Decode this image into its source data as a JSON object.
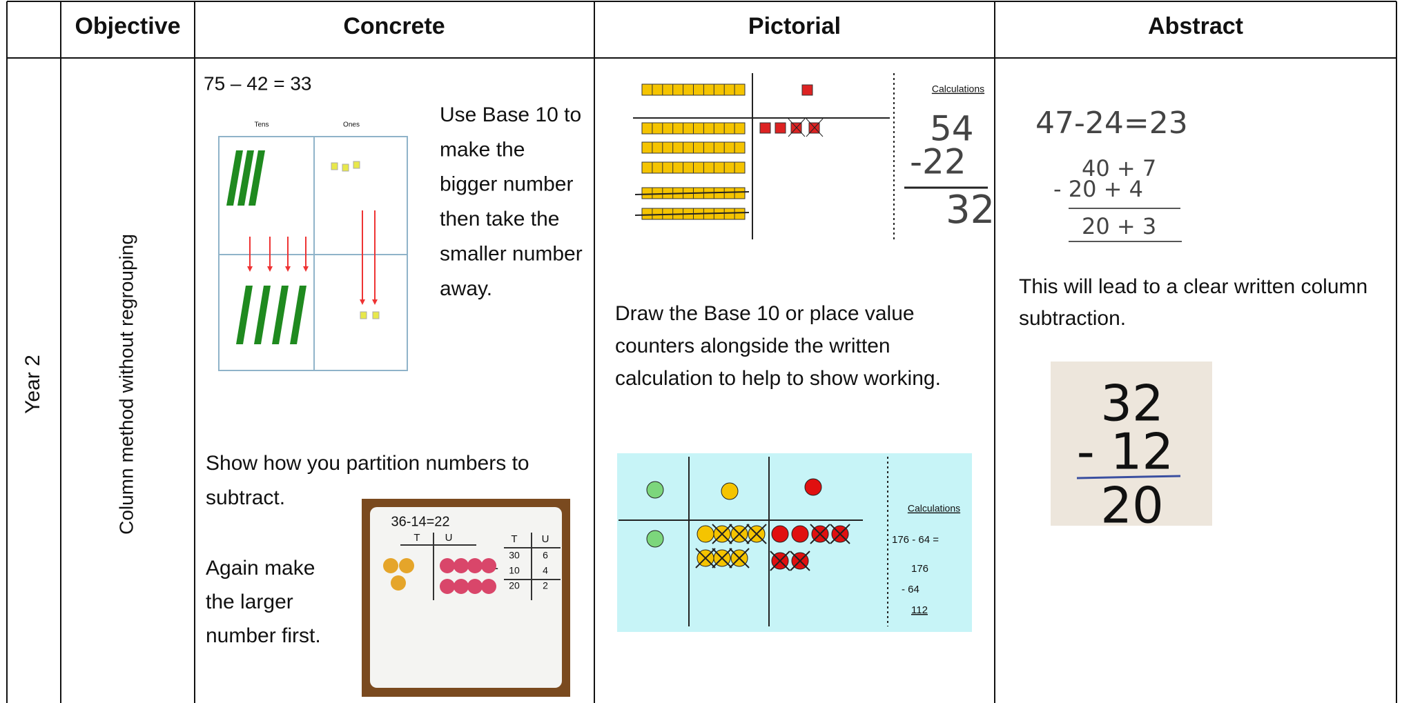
{
  "header": {
    "columns": [
      "Objective",
      "Concrete",
      "Pictorial",
      "Abstract"
    ]
  },
  "row": {
    "year": "Year 2",
    "objective": "Column method without regrouping",
    "concrete": {
      "equation": "75 – 42 = 33",
      "place_value_labels": [
        "Tens",
        "Ones"
      ],
      "instruction": [
        "Use Base 10 to",
        "make the",
        "bigger number",
        "then take the",
        "smaller number",
        "away."
      ],
      "partition": [
        "Show how you partition numbers to",
        "subtract."
      ],
      "again": [
        "Again make",
        "the larger",
        "number first."
      ],
      "whiteboard": {
        "equation": "36-14=22",
        "headings": [
          "T",
          "U",
          "T",
          "U"
        ],
        "minus": "-",
        "rows": [
          [
            "30",
            "6"
          ],
          [
            "10",
            "4"
          ],
          [
            "20",
            "2"
          ]
        ]
      }
    },
    "pictorial": {
      "calc_heading": "Calculations",
      "calc": [
        "54",
        "-22",
        "32"
      ],
      "instruction": [
        "Draw the Base 10 or place value",
        "counters alongside the written",
        "calculation to help to show working."
      ],
      "counters_calc_heading": "Calculations",
      "counters_calc": [
        "176 - 64 =",
        "176",
        "- 64",
        "112"
      ]
    },
    "abstract": {
      "equation": "47-24=23",
      "partition": [
        "40 + 7",
        "- 20 + 4",
        "20 + 3"
      ],
      "note": [
        "This will lead to a clear written column",
        "subtraction."
      ],
      "photo": [
        "32",
        "- 12",
        "20"
      ]
    }
  }
}
